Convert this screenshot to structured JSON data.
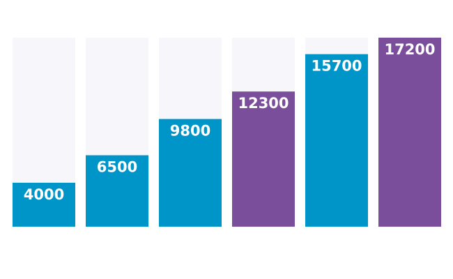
{
  "chart_data": {
    "type": "bar",
    "categories": [
      "",
      "",
      "",
      "",
      "",
      ""
    ],
    "values": [
      4000,
      6500,
      9800,
      12300,
      15700,
      17200
    ],
    "labels": [
      "4000",
      "6500",
      "9800",
      "12300",
      "15700",
      "17200"
    ],
    "ylim": [
      0,
      17200
    ],
    "grid": false,
    "legend": "none",
    "colors": {
      "track": "#f7f7fb",
      "blue": "#0095c8",
      "purple": "#7b4e9b",
      "label": "#ffffff"
    },
    "bar_colors": [
      "blue",
      "blue",
      "blue",
      "purple",
      "blue",
      "purple"
    ]
  }
}
